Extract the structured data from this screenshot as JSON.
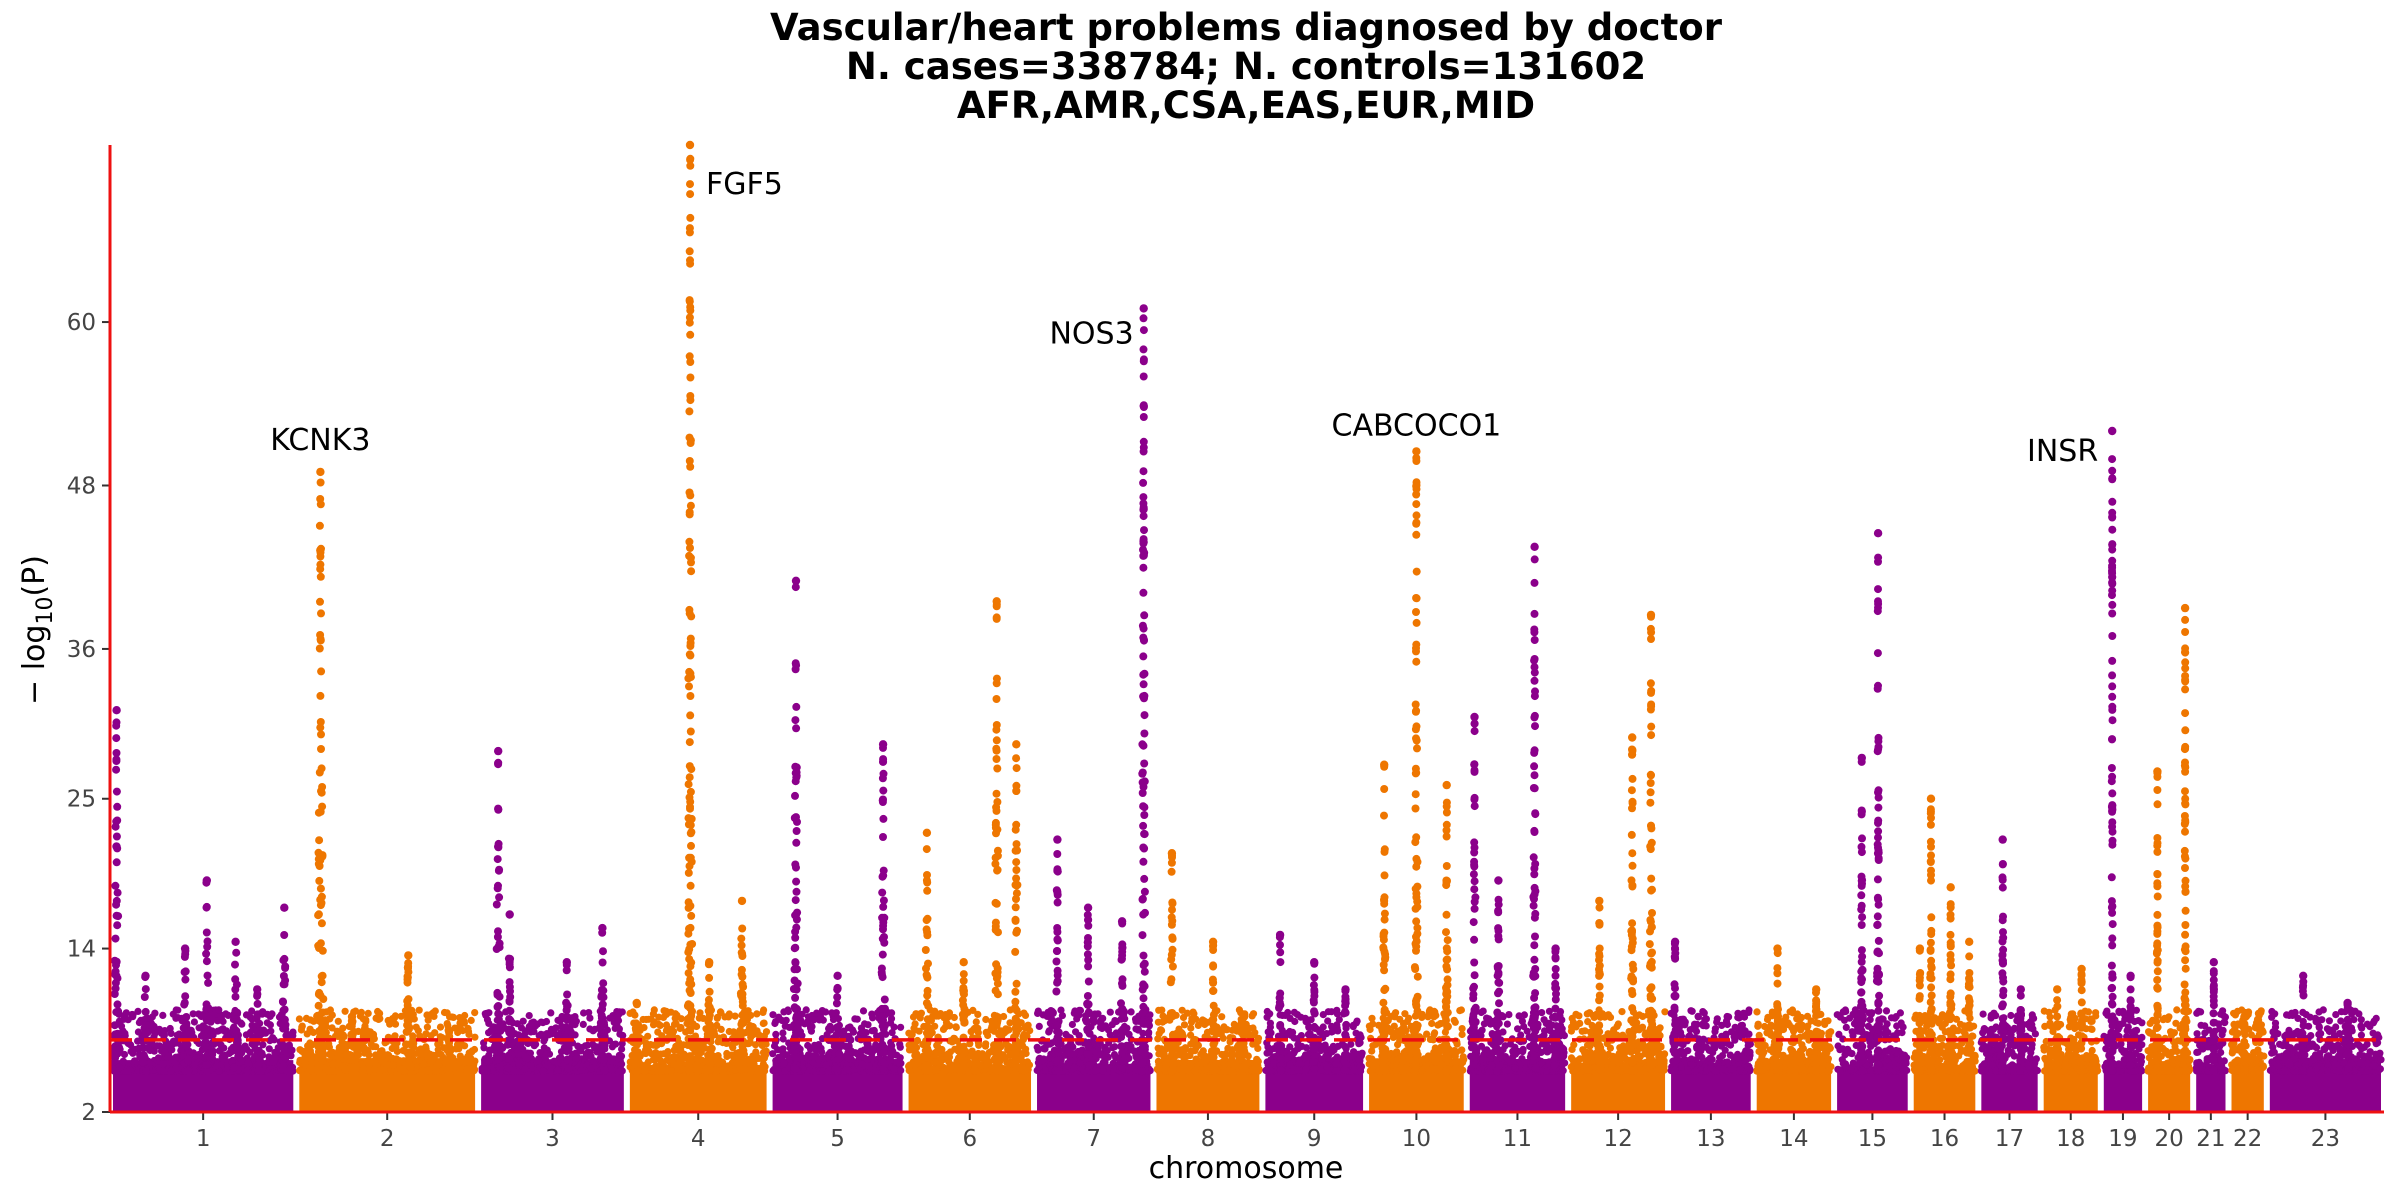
{
  "chart_data": {
    "type": "scatter",
    "subtype": "manhattan",
    "title_lines": [
      "Vascular/heart problems diagnosed by doctor",
      "N. cases=338784; N. controls=131602",
      "AFR,AMR,CSA,EAS,EUR,MID"
    ],
    "xlabel": "chromosome",
    "ylabel_base": "− log",
    "ylabel_sub": "10",
    "ylabel_tail": "(P)",
    "ylim": [
      2,
      73
    ],
    "yticks": [
      2,
      14,
      25,
      36,
      48,
      60
    ],
    "threshold": 7.3,
    "threshold_color": "#ee1111",
    "axis_color": "#ee1111",
    "colors": {
      "odd": "#8b008b",
      "even": "#ee7600"
    },
    "chromosomes": [
      {
        "label": "1",
        "length": 248
      },
      {
        "label": "2",
        "length": 242
      },
      {
        "label": "3",
        "length": 198
      },
      {
        "label": "4",
        "length": 190
      },
      {
        "label": "5",
        "length": 181
      },
      {
        "label": "6",
        "length": 171
      },
      {
        "label": "7",
        "length": 159
      },
      {
        "label": "8",
        "length": 145
      },
      {
        "label": "9",
        "length": 138
      },
      {
        "label": "10",
        "length": 134
      },
      {
        "label": "11",
        "length": 135
      },
      {
        "label": "12",
        "length": 133
      },
      {
        "label": "13",
        "length": 114
      },
      {
        "label": "14",
        "length": 107
      },
      {
        "label": "15",
        "length": 102
      },
      {
        "label": "16",
        "length": 90
      },
      {
        "label": "17",
        "length": 83
      },
      {
        "label": "18",
        "length": 80
      },
      {
        "label": "19",
        "length": 59
      },
      {
        "label": "20",
        "length": 64
      },
      {
        "label": "21",
        "length": 47
      },
      {
        "label": "22",
        "length": 51
      },
      {
        "label": "23",
        "length": 156
      }
    ],
    "peaks": [
      {
        "chr": 1,
        "pos": 0.02,
        "max": 31.5
      },
      {
        "chr": 1,
        "pos": 0.18,
        "max": 12
      },
      {
        "chr": 1,
        "pos": 0.4,
        "max": 14
      },
      {
        "chr": 1,
        "pos": 0.52,
        "max": 19
      },
      {
        "chr": 1,
        "pos": 0.68,
        "max": 14.5
      },
      {
        "chr": 1,
        "pos": 0.8,
        "max": 11
      },
      {
        "chr": 1,
        "pos": 0.95,
        "max": 17
      },
      {
        "chr": 2,
        "pos": 0.12,
        "max": 49
      },
      {
        "chr": 2,
        "pos": 0.3,
        "max": 9
      },
      {
        "chr": 2,
        "pos": 0.62,
        "max": 13.5
      },
      {
        "chr": 2,
        "pos": 0.85,
        "max": 8
      },
      {
        "chr": 3,
        "pos": 0.12,
        "max": 28.5
      },
      {
        "chr": 3,
        "pos": 0.2,
        "max": 16.5
      },
      {
        "chr": 3,
        "pos": 0.6,
        "max": 13
      },
      {
        "chr": 3,
        "pos": 0.85,
        "max": 15.5
      },
      {
        "chr": 4,
        "pos": 0.05,
        "max": 10
      },
      {
        "chr": 4,
        "pos": 0.44,
        "max": 73
      },
      {
        "chr": 4,
        "pos": 0.58,
        "max": 13
      },
      {
        "chr": 4,
        "pos": 0.82,
        "max": 17.5
      },
      {
        "chr": 5,
        "pos": 0.18,
        "max": 41
      },
      {
        "chr": 5,
        "pos": 0.5,
        "max": 12
      },
      {
        "chr": 5,
        "pos": 0.85,
        "max": 29
      },
      {
        "chr": 6,
        "pos": 0.15,
        "max": 22.5
      },
      {
        "chr": 6,
        "pos": 0.45,
        "max": 13
      },
      {
        "chr": 6,
        "pos": 0.72,
        "max": 39.5
      },
      {
        "chr": 6,
        "pos": 0.88,
        "max": 29
      },
      {
        "chr": 7,
        "pos": 0.18,
        "max": 22
      },
      {
        "chr": 7,
        "pos": 0.45,
        "max": 17
      },
      {
        "chr": 7,
        "pos": 0.75,
        "max": 16
      },
      {
        "chr": 7,
        "pos": 0.94,
        "max": 61
      },
      {
        "chr": 8,
        "pos": 0.15,
        "max": 21
      },
      {
        "chr": 8,
        "pos": 0.55,
        "max": 14.5
      },
      {
        "chr": 8,
        "pos": 0.85,
        "max": 9
      },
      {
        "chr": 9,
        "pos": 0.15,
        "max": 15
      },
      {
        "chr": 9,
        "pos": 0.5,
        "max": 13
      },
      {
        "chr": 9,
        "pos": 0.82,
        "max": 11
      },
      {
        "chr": 10,
        "pos": 0.16,
        "max": 27.5
      },
      {
        "chr": 10,
        "pos": 0.5,
        "max": 50.5
      },
      {
        "chr": 10,
        "pos": 0.82,
        "max": 26
      },
      {
        "chr": 11,
        "pos": 0.05,
        "max": 31
      },
      {
        "chr": 11,
        "pos": 0.3,
        "max": 19
      },
      {
        "chr": 11,
        "pos": 0.68,
        "max": 43.5
      },
      {
        "chr": 11,
        "pos": 0.9,
        "max": 14
      },
      {
        "chr": 12,
        "pos": 0.3,
        "max": 17.5
      },
      {
        "chr": 12,
        "pos": 0.65,
        "max": 29.5
      },
      {
        "chr": 12,
        "pos": 0.85,
        "max": 38.5
      },
      {
        "chr": 13,
        "pos": 0.05,
        "max": 14.5
      },
      {
        "chr": 14,
        "pos": 0.28,
        "max": 14
      },
      {
        "chr": 14,
        "pos": 0.8,
        "max": 11
      },
      {
        "chr": 15,
        "pos": 0.35,
        "max": 28
      },
      {
        "chr": 15,
        "pos": 0.58,
        "max": 44.5
      },
      {
        "chr": 16,
        "pos": 0.1,
        "max": 14
      },
      {
        "chr": 16,
        "pos": 0.28,
        "max": 25
      },
      {
        "chr": 16,
        "pos": 0.6,
        "max": 18.5
      },
      {
        "chr": 16,
        "pos": 0.9,
        "max": 14.5
      },
      {
        "chr": 17,
        "pos": 0.38,
        "max": 22
      },
      {
        "chr": 17,
        "pos": 0.7,
        "max": 11
      },
      {
        "chr": 18,
        "pos": 0.25,
        "max": 11
      },
      {
        "chr": 18,
        "pos": 0.7,
        "max": 12.5
      },
      {
        "chr": 19,
        "pos": 0.22,
        "max": 52
      },
      {
        "chr": 19,
        "pos": 0.7,
        "max": 12
      },
      {
        "chr": 20,
        "pos": 0.22,
        "max": 27
      },
      {
        "chr": 20,
        "pos": 0.88,
        "max": 39
      },
      {
        "chr": 21,
        "pos": 0.6,
        "max": 13
      },
      {
        "chr": 22,
        "pos": 0.4,
        "max": 9
      },
      {
        "chr": 23,
        "pos": 0.3,
        "max": 12
      },
      {
        "chr": 23,
        "pos": 0.7,
        "max": 10
      }
    ],
    "annotations": [
      {
        "text": "KCNK3",
        "chr": 2,
        "pos": 0.12,
        "y": 49
      },
      {
        "text": "FGF5",
        "chr": 4,
        "pos": 0.44,
        "y": 70
      },
      {
        "text": "NOS3",
        "chr": 7,
        "pos": 0.94,
        "y": 61
      },
      {
        "text": "CABCOCO1",
        "chr": 10,
        "pos": 0.5,
        "y": 50.5
      },
      {
        "text": "INSR",
        "chr": 19,
        "pos": 0.22,
        "y": 52
      }
    ]
  }
}
